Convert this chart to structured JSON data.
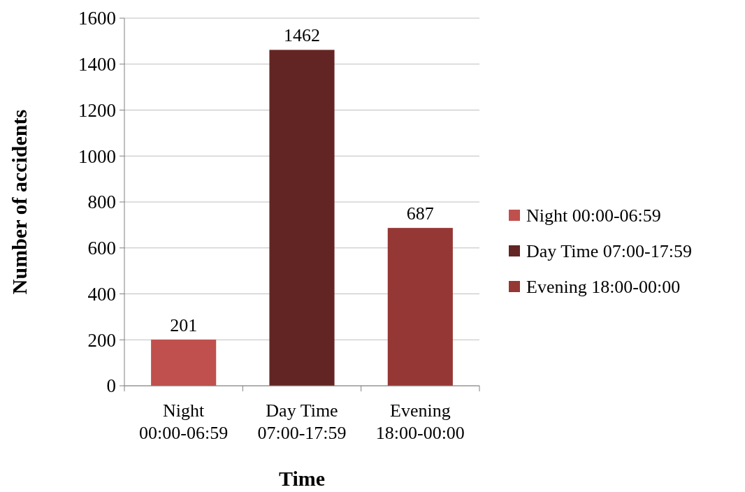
{
  "chart_data": {
    "type": "bar",
    "xlabel": "Time",
    "ylabel": "Number of accidents",
    "categories": [
      "Night\n00:00-06:59",
      "Day Time\n07:00-17:59",
      "Evening\n18:00-00:00"
    ],
    "series": [
      {
        "name": "Night 00:00-06:59",
        "color": "#c0504d",
        "values": [
          201,
          null,
          null
        ]
      },
      {
        "name": "Day Time 07:00-17:59",
        "color": "#632523",
        "values": [
          null,
          1462,
          null
        ]
      },
      {
        "name": "Evening 18:00-00:00",
        "color": "#953735",
        "values": [
          null,
          null,
          687
        ]
      }
    ],
    "ylim": [
      0,
      1600
    ],
    "yticks": [
      0,
      200,
      400,
      600,
      800,
      1000,
      1200,
      1400,
      1600
    ],
    "grid": "y",
    "legend": "right",
    "data_labels": true
  }
}
